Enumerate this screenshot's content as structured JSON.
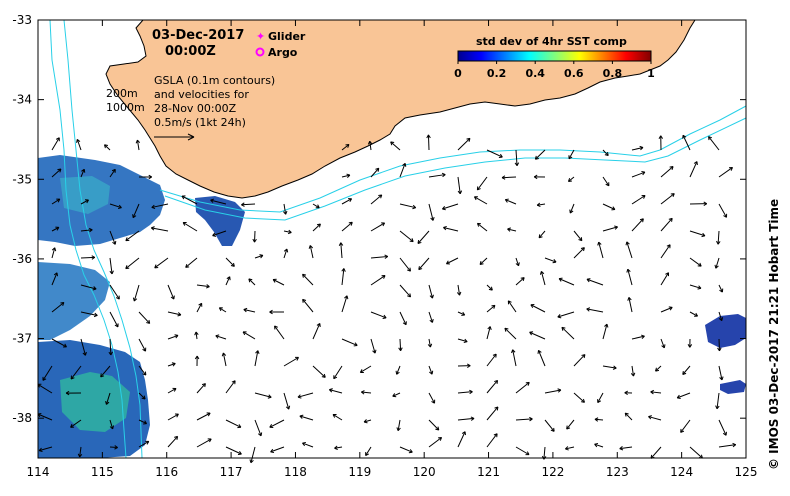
{
  "map": {
    "date": "03-Dec-2017",
    "time": "00:00Z",
    "legend": {
      "glider": "Glider",
      "argo": "Argo"
    },
    "gsla_note": [
      "GSLA (0.1m contours)",
      "and velocities for",
      "28-Nov 00:00Z",
      "0.5m/s (1kt 24h)"
    ],
    "depth_labels": [
      "200m",
      "1000m"
    ],
    "colorbar": {
      "title": "std dev of 4hr SST comp",
      "ticks": [
        "0",
        "0.2",
        "0.4",
        "0.6",
        "0.8",
        "1"
      ]
    },
    "credit": "©  IMOS 03-Dec-2017 21:21 Hobart Time",
    "x_ticks": [
      "114",
      "115",
      "116",
      "117",
      "118",
      "119",
      "120",
      "121",
      "122",
      "123",
      "124",
      "125"
    ],
    "y_ticks": [
      "-33",
      "-34",
      "-35",
      "-36",
      "-37",
      "-38"
    ],
    "x_range": [
      114,
      125
    ],
    "y_range": [
      -38.5,
      -33
    ],
    "colors": {
      "land": "#f9c596",
      "coast": "#000000",
      "contour": "#28d0e8",
      "glider": "#ff00ff",
      "argo": "#ff00ff",
      "sst_low": "#1a3aa8",
      "sst_mid": "#2c88c8"
    }
  }
}
